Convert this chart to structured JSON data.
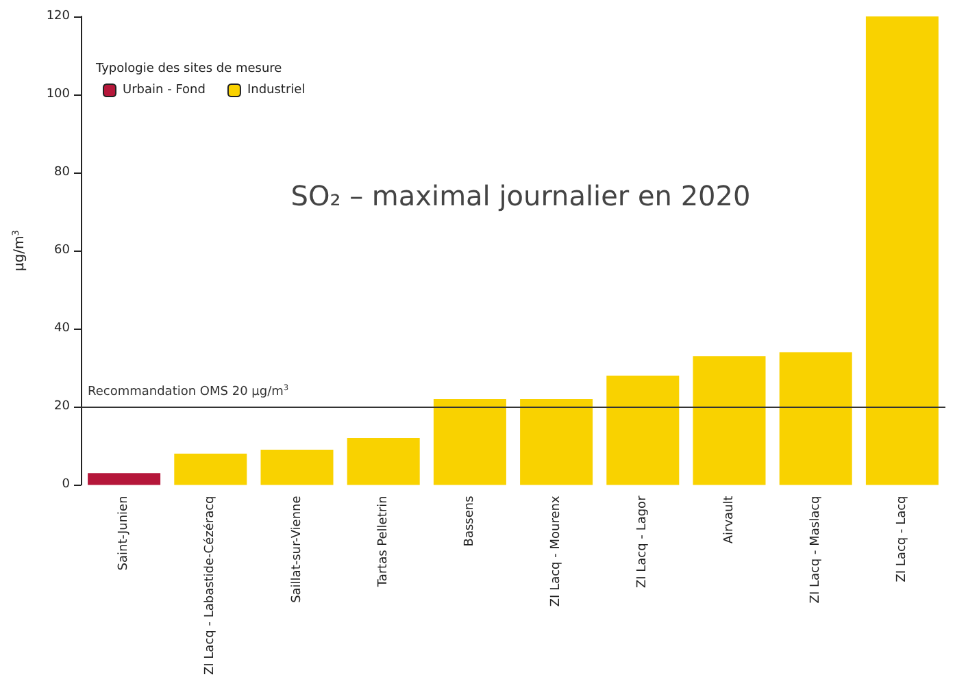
{
  "chart_data": {
    "type": "bar",
    "title": "SO₂ – maximal journalier en 2020",
    "ylabel": "µg/m$^{3}$",
    "legend_title": "Typologie des sites de mesure",
    "categories": [
      "Saint-Junien",
      "ZI Lacq - Labastide-Cézéracq",
      "Saillat-sur-Vienne",
      "Tartas Pelletrin",
      "Bassens",
      "ZI Lacq - Mourenx",
      "ZI Lacq - Lagor",
      "Airvault",
      "ZI Lacq - Maslacq",
      "ZI Lacq - Lacq"
    ],
    "series": [
      {
        "name": "Urbain - Fond",
        "color": "#b5173a",
        "values": [
          3,
          null,
          null,
          null,
          null,
          null,
          null,
          null,
          null,
          null
        ]
      },
      {
        "name": "Industriel",
        "color": "#f9d200",
        "values": [
          null,
          8,
          9,
          12,
          22,
          22,
          28,
          33,
          34,
          120
        ]
      }
    ],
    "stacked": true,
    "ylim": [
      0,
      120
    ],
    "yticks": [
      0,
      20,
      40,
      60,
      80,
      100,
      120
    ],
    "grid": false,
    "legend": "top left",
    "ref_lines": [
      {
        "axis": "y",
        "value": 20,
        "label": "Recommandation OMS 20 µg/m$^{3}$",
        "color": "#333333"
      }
    ]
  }
}
